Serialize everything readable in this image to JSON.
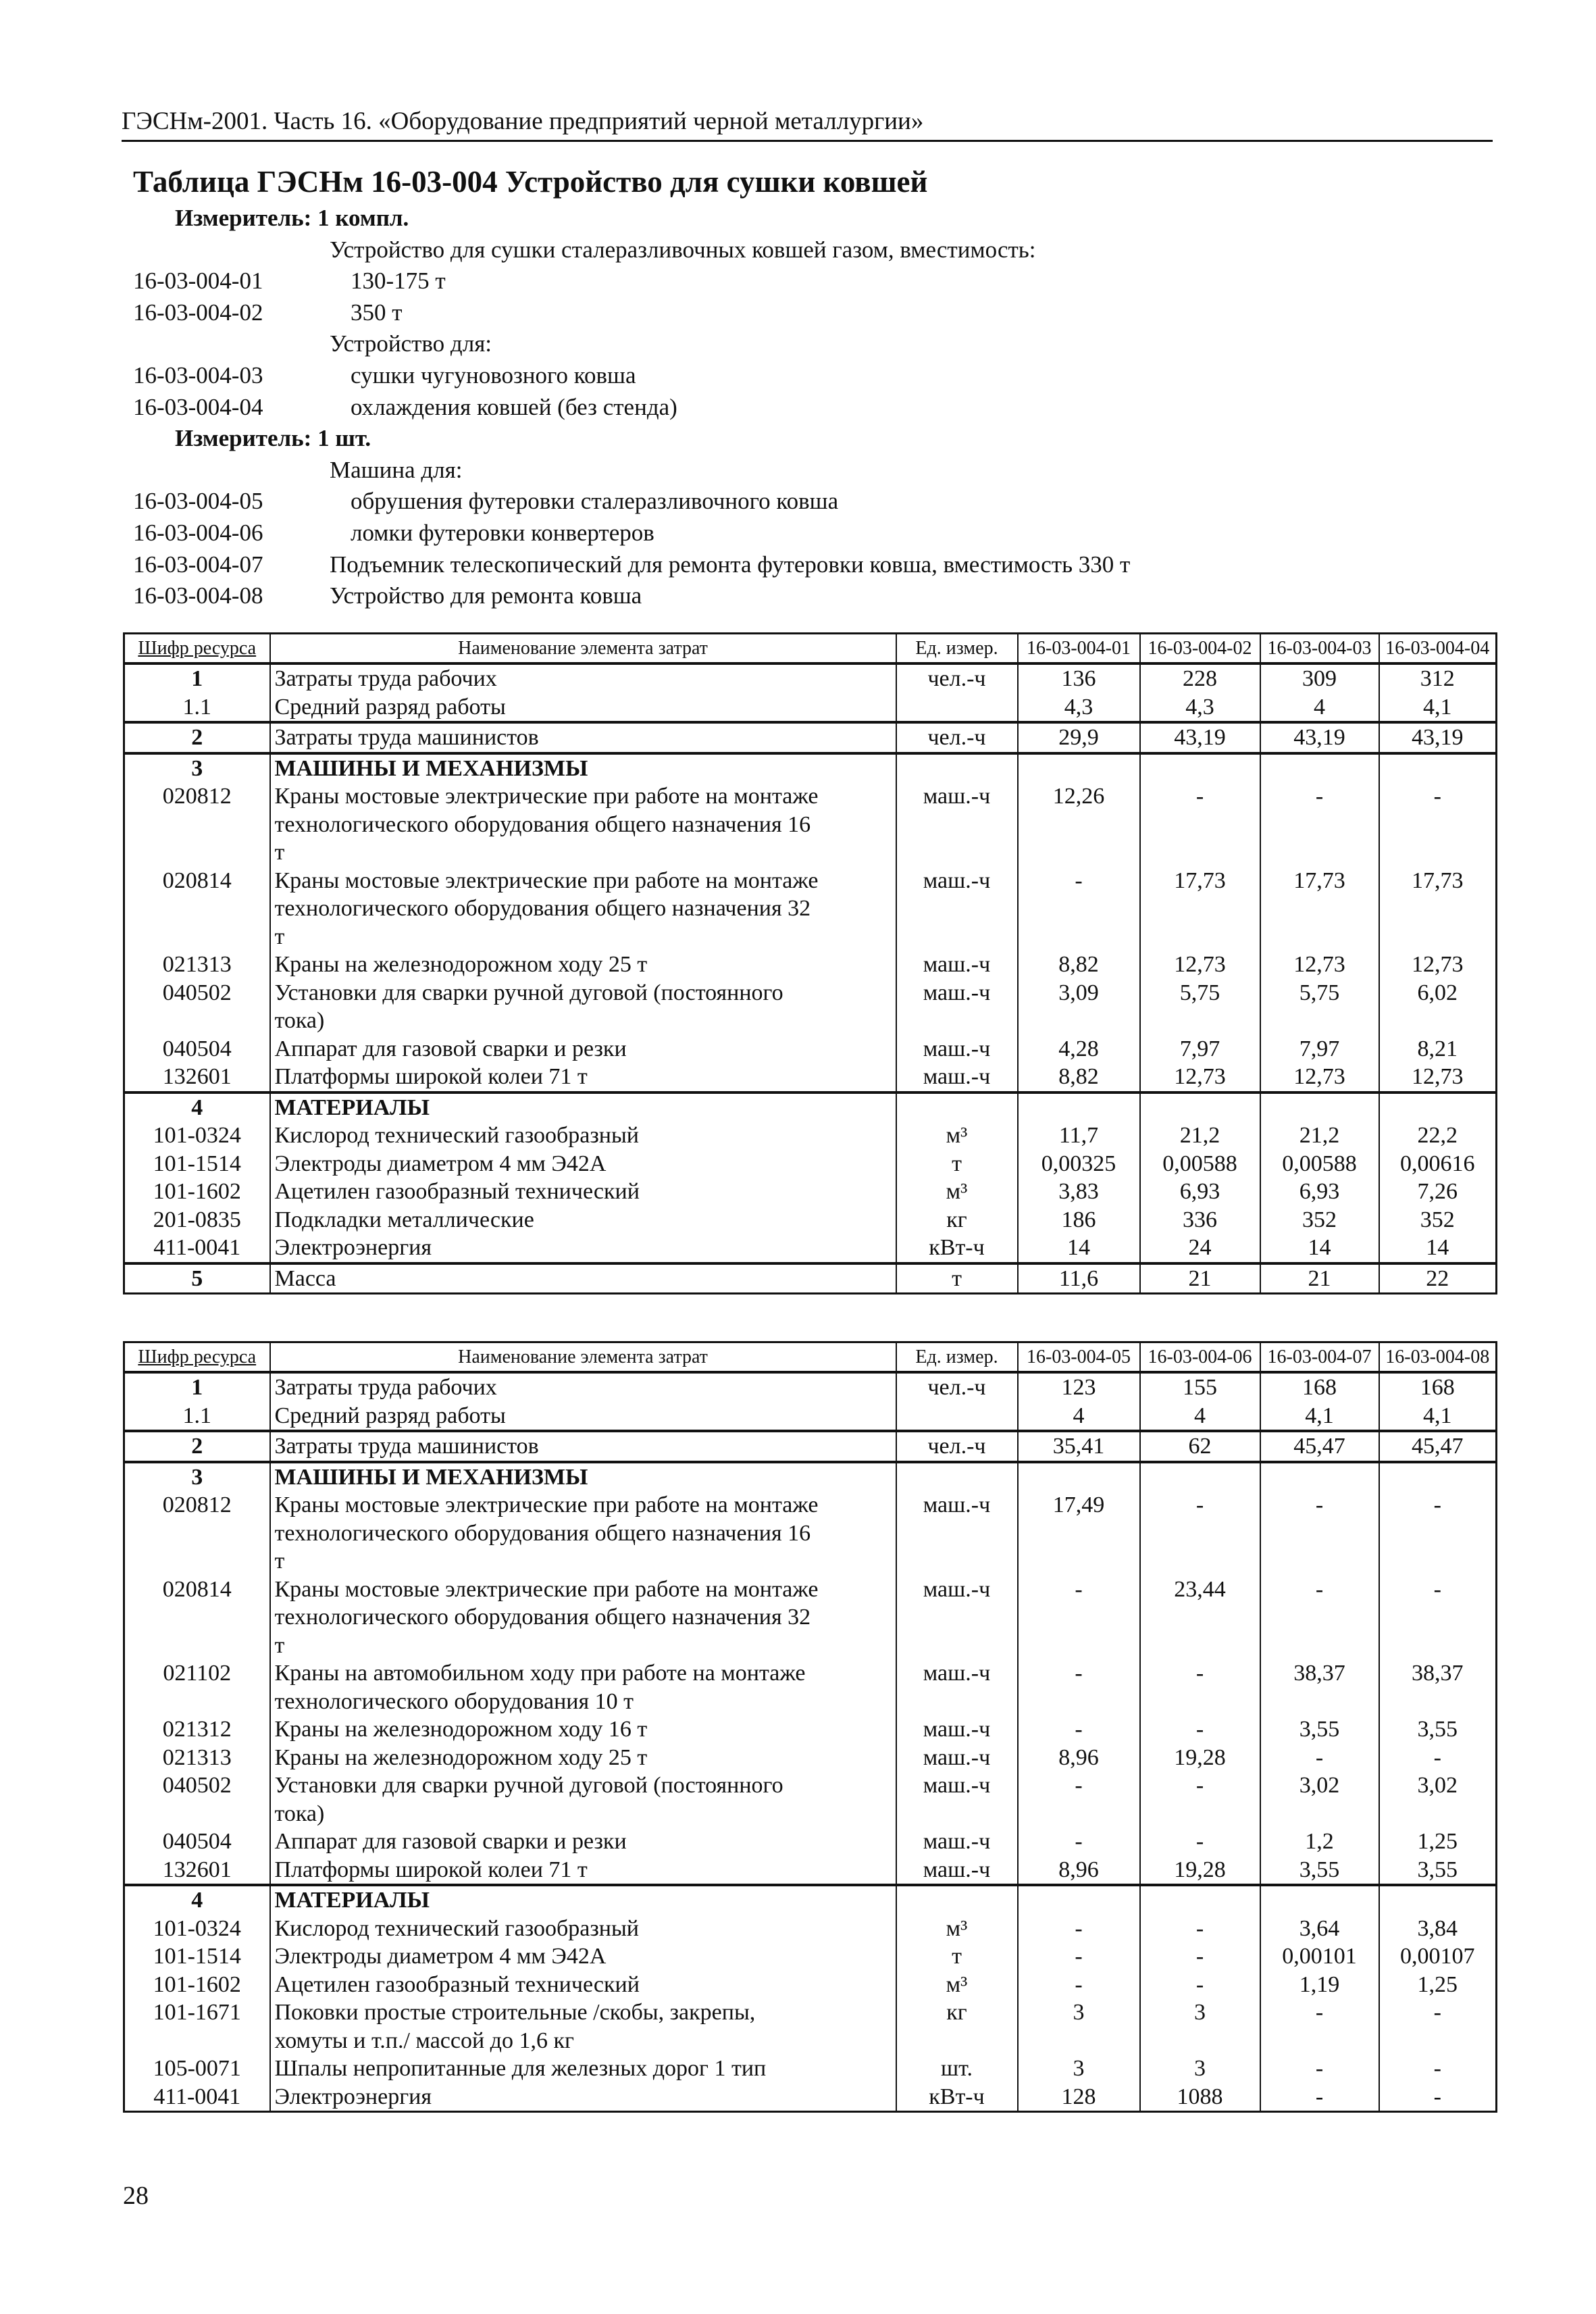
{
  "running_head": "ГЭСНм-2001. Часть 16. «Оборудование предприятий черной металлургии»",
  "title": "Таблица ГЭСНм 16-03-004 Устройство для сушки ковшей",
  "intro": [
    {
      "type": "meter",
      "text": "Измеритель: 1 компл."
    },
    {
      "type": "group",
      "text": "Устройство для сушки сталеразливочных ковшей газом, вместимость:"
    },
    {
      "type": "item",
      "code": "16-03-004-01",
      "text": "130-175 т"
    },
    {
      "type": "item",
      "code": "16-03-004-02",
      "text": "350 т"
    },
    {
      "type": "group",
      "text": "Устройство для:"
    },
    {
      "type": "item",
      "code": "16-03-004-03",
      "text": "сушки чугуновозного ковша"
    },
    {
      "type": "item",
      "code": "16-03-004-04",
      "text": "охлаждения ковшей (без стенда)"
    },
    {
      "type": "meter",
      "text": "Измеритель: 1 шт."
    },
    {
      "type": "group",
      "text": "Машина для:"
    },
    {
      "type": "item",
      "code": "16-03-004-05",
      "text": "обрушения футеровки сталеразливочного ковша"
    },
    {
      "type": "item",
      "code": "16-03-004-06",
      "text": "ломки футеровки конвертеров"
    },
    {
      "type": "plain",
      "code": "16-03-004-07",
      "text": "Подъемник телескопический для ремонта футеровки ковша, вместимость 330 т"
    },
    {
      "type": "plain",
      "code": "16-03-004-08",
      "text": "Устройство для ремонта ковша"
    }
  ],
  "table_header": {
    "code": "Шифр ресурса",
    "name": "Наименование элемента затрат",
    "unit": "Ед. измер."
  },
  "tables": [
    {
      "columns": [
        "16-03-004-01",
        "16-03-004-02",
        "16-03-004-03",
        "16-03-004-04"
      ],
      "groups": [
        [
          {
            "code": "1",
            "name": "Затраты труда рабочих",
            "unit": "чел.-ч",
            "values": [
              "136",
              "228",
              "309",
              "312"
            ],
            "bold_code": true
          },
          {
            "code": "1.1",
            "name": "Средний разряд работы",
            "unit": "",
            "values": [
              "4,3",
              "4,3",
              "4",
              "4,1"
            ]
          }
        ],
        [
          {
            "code": "2",
            "name": "Затраты труда машинистов",
            "unit": "чел.-ч",
            "values": [
              "29,9",
              "43,19",
              "43,19",
              "43,19"
            ],
            "bold_code": true
          }
        ],
        [
          {
            "code": "3",
            "name": "МАШИНЫ И МЕХАНИЗМЫ",
            "unit": "",
            "values": [
              "",
              "",
              "",
              ""
            ],
            "bold_code": true,
            "bold_name": true
          },
          {
            "code": "020812",
            "name": "Краны мостовые электрические при работе на монтаже\nтехнологического оборудования общего назначения 16\nт",
            "unit": "маш.-ч",
            "values": [
              "12,26",
              "-",
              "-",
              "-"
            ]
          },
          {
            "code": "020814",
            "name": "Краны мостовые электрические при работе на монтаже\nтехнологического оборудования общего назначения 32\nт",
            "unit": "маш.-ч",
            "values": [
              "-",
              "17,73",
              "17,73",
              "17,73"
            ]
          },
          {
            "code": "021313",
            "name": "Краны на железнодорожном ходу 25 т",
            "unit": "маш.-ч",
            "values": [
              "8,82",
              "12,73",
              "12,73",
              "12,73"
            ]
          },
          {
            "code": "040502",
            "name": "Установки для сварки ручной дуговой (постоянного\nтока)",
            "unit": "маш.-ч",
            "values": [
              "3,09",
              "5,75",
              "5,75",
              "6,02"
            ]
          },
          {
            "code": "040504",
            "name": "Аппарат для газовой сварки и резки",
            "unit": "маш.-ч",
            "values": [
              "4,28",
              "7,97",
              "7,97",
              "8,21"
            ]
          },
          {
            "code": "132601",
            "name": "Платформы широкой колеи 71 т",
            "unit": "маш.-ч",
            "values": [
              "8,82",
              "12,73",
              "12,73",
              "12,73"
            ]
          }
        ],
        [
          {
            "code": "4",
            "name": "МАТЕРИАЛЫ",
            "unit": "",
            "values": [
              "",
              "",
              "",
              ""
            ],
            "bold_code": true,
            "bold_name": true
          },
          {
            "code": "101-0324",
            "name": "Кислород технический газообразный",
            "unit": "м³",
            "values": [
              "11,7",
              "21,2",
              "21,2",
              "22,2"
            ]
          },
          {
            "code": "101-1514",
            "name": "Электроды диаметром 4 мм Э42А",
            "unit": "т",
            "values": [
              "0,00325",
              "0,00588",
              "0,00588",
              "0,00616"
            ]
          },
          {
            "code": "101-1602",
            "name": "Ацетилен газообразный технический",
            "unit": "м³",
            "values": [
              "3,83",
              "6,93",
              "6,93",
              "7,26"
            ]
          },
          {
            "code": "201-0835",
            "name": "Подкладки металлические",
            "unit": "кг",
            "values": [
              "186",
              "336",
              "352",
              "352"
            ]
          },
          {
            "code": "411-0041",
            "name": "Электроэнергия",
            "unit": "кВт-ч",
            "values": [
              "14",
              "24",
              "14",
              "14"
            ]
          }
        ],
        [
          {
            "code": "5",
            "name": "Масса",
            "unit": "т",
            "values": [
              "11,6",
              "21",
              "21",
              "22"
            ],
            "bold_code": true
          }
        ]
      ]
    },
    {
      "columns": [
        "16-03-004-05",
        "16-03-004-06",
        "16-03-004-07",
        "16-03-004-08"
      ],
      "groups": [
        [
          {
            "code": "1",
            "name": "Затраты труда рабочих",
            "unit": "чел.-ч",
            "values": [
              "123",
              "155",
              "168",
              "168"
            ],
            "bold_code": true
          },
          {
            "code": "1.1",
            "name": "Средний разряд работы",
            "unit": "",
            "values": [
              "4",
              "4",
              "4,1",
              "4,1"
            ]
          }
        ],
        [
          {
            "code": "2",
            "name": "Затраты труда машинистов",
            "unit": "чел.-ч",
            "values": [
              "35,41",
              "62",
              "45,47",
              "45,47"
            ],
            "bold_code": true
          }
        ],
        [
          {
            "code": "3",
            "name": "МАШИНЫ И МЕХАНИЗМЫ",
            "unit": "",
            "values": [
              "",
              "",
              "",
              ""
            ],
            "bold_code": true,
            "bold_name": true
          },
          {
            "code": "020812",
            "name": "Краны мостовые электрические при работе на монтаже\nтехнологического оборудования общего назначения 16\nт",
            "unit": "маш.-ч",
            "values": [
              "17,49",
              "-",
              "-",
              "-"
            ]
          },
          {
            "code": "020814",
            "name": "Краны мостовые электрические при работе на монтаже\nтехнологического оборудования общего назначения 32\nт",
            "unit": "маш.-ч",
            "values": [
              "-",
              "23,44",
              "-",
              "-"
            ]
          },
          {
            "code": "021102",
            "name": "Краны на автомобильном ходу при работе на монтаже\nтехнологического оборудования 10 т",
            "unit": "маш.-ч",
            "values": [
              "-",
              "-",
              "38,37",
              "38,37"
            ]
          },
          {
            "code": "021312",
            "name": "Краны на железнодорожном ходу 16 т",
            "unit": "маш.-ч",
            "values": [
              "-",
              "-",
              "3,55",
              "3,55"
            ]
          },
          {
            "code": "021313",
            "name": "Краны на железнодорожном ходу 25 т",
            "unit": "маш.-ч",
            "values": [
              "8,96",
              "19,28",
              "-",
              "-"
            ]
          },
          {
            "code": "040502",
            "name": "Установки для сварки ручной дуговой (постоянного\nтока)",
            "unit": "маш.-ч",
            "values": [
              "-",
              "-",
              "3,02",
              "3,02"
            ]
          },
          {
            "code": "040504",
            "name": "Аппарат для газовой сварки и резки",
            "unit": "маш.-ч",
            "values": [
              "-",
              "-",
              "1,2",
              "1,25"
            ]
          },
          {
            "code": "132601",
            "name": "Платформы широкой колеи 71 т",
            "unit": "маш.-ч",
            "values": [
              "8,96",
              "19,28",
              "3,55",
              "3,55"
            ]
          }
        ],
        [
          {
            "code": "4",
            "name": "МАТЕРИАЛЫ",
            "unit": "",
            "values": [
              "",
              "",
              "",
              ""
            ],
            "bold_code": true,
            "bold_name": true
          },
          {
            "code": "101-0324",
            "name": "Кислород технический газообразный",
            "unit": "м³",
            "values": [
              "-",
              "-",
              "3,64",
              "3,84"
            ]
          },
          {
            "code": "101-1514",
            "name": "Электроды диаметром 4 мм Э42А",
            "unit": "т",
            "values": [
              "-",
              "-",
              "0,00101",
              "0,00107"
            ]
          },
          {
            "code": "101-1602",
            "name": "Ацетилен газообразный технический",
            "unit": "м³",
            "values": [
              "-",
              "-",
              "1,19",
              "1,25"
            ]
          },
          {
            "code": "101-1671",
            "name": "Поковки простые строительные /скобы, закрепы,\nхомуты и т.п./ массой до 1,6 кг",
            "unit": "кг",
            "values": [
              "3",
              "3",
              "-",
              "-"
            ]
          },
          {
            "code": "105-0071",
            "name": "Шпалы непропитанные для железных дорог 1 тип",
            "unit": "шт.",
            "values": [
              "3",
              "3",
              "-",
              "-"
            ]
          },
          {
            "code": "411-0041",
            "name": "Электроэнергия",
            "unit": "кВт-ч",
            "values": [
              "128",
              "1088",
              "-",
              "-"
            ]
          }
        ]
      ]
    }
  ],
  "page_number": "28"
}
